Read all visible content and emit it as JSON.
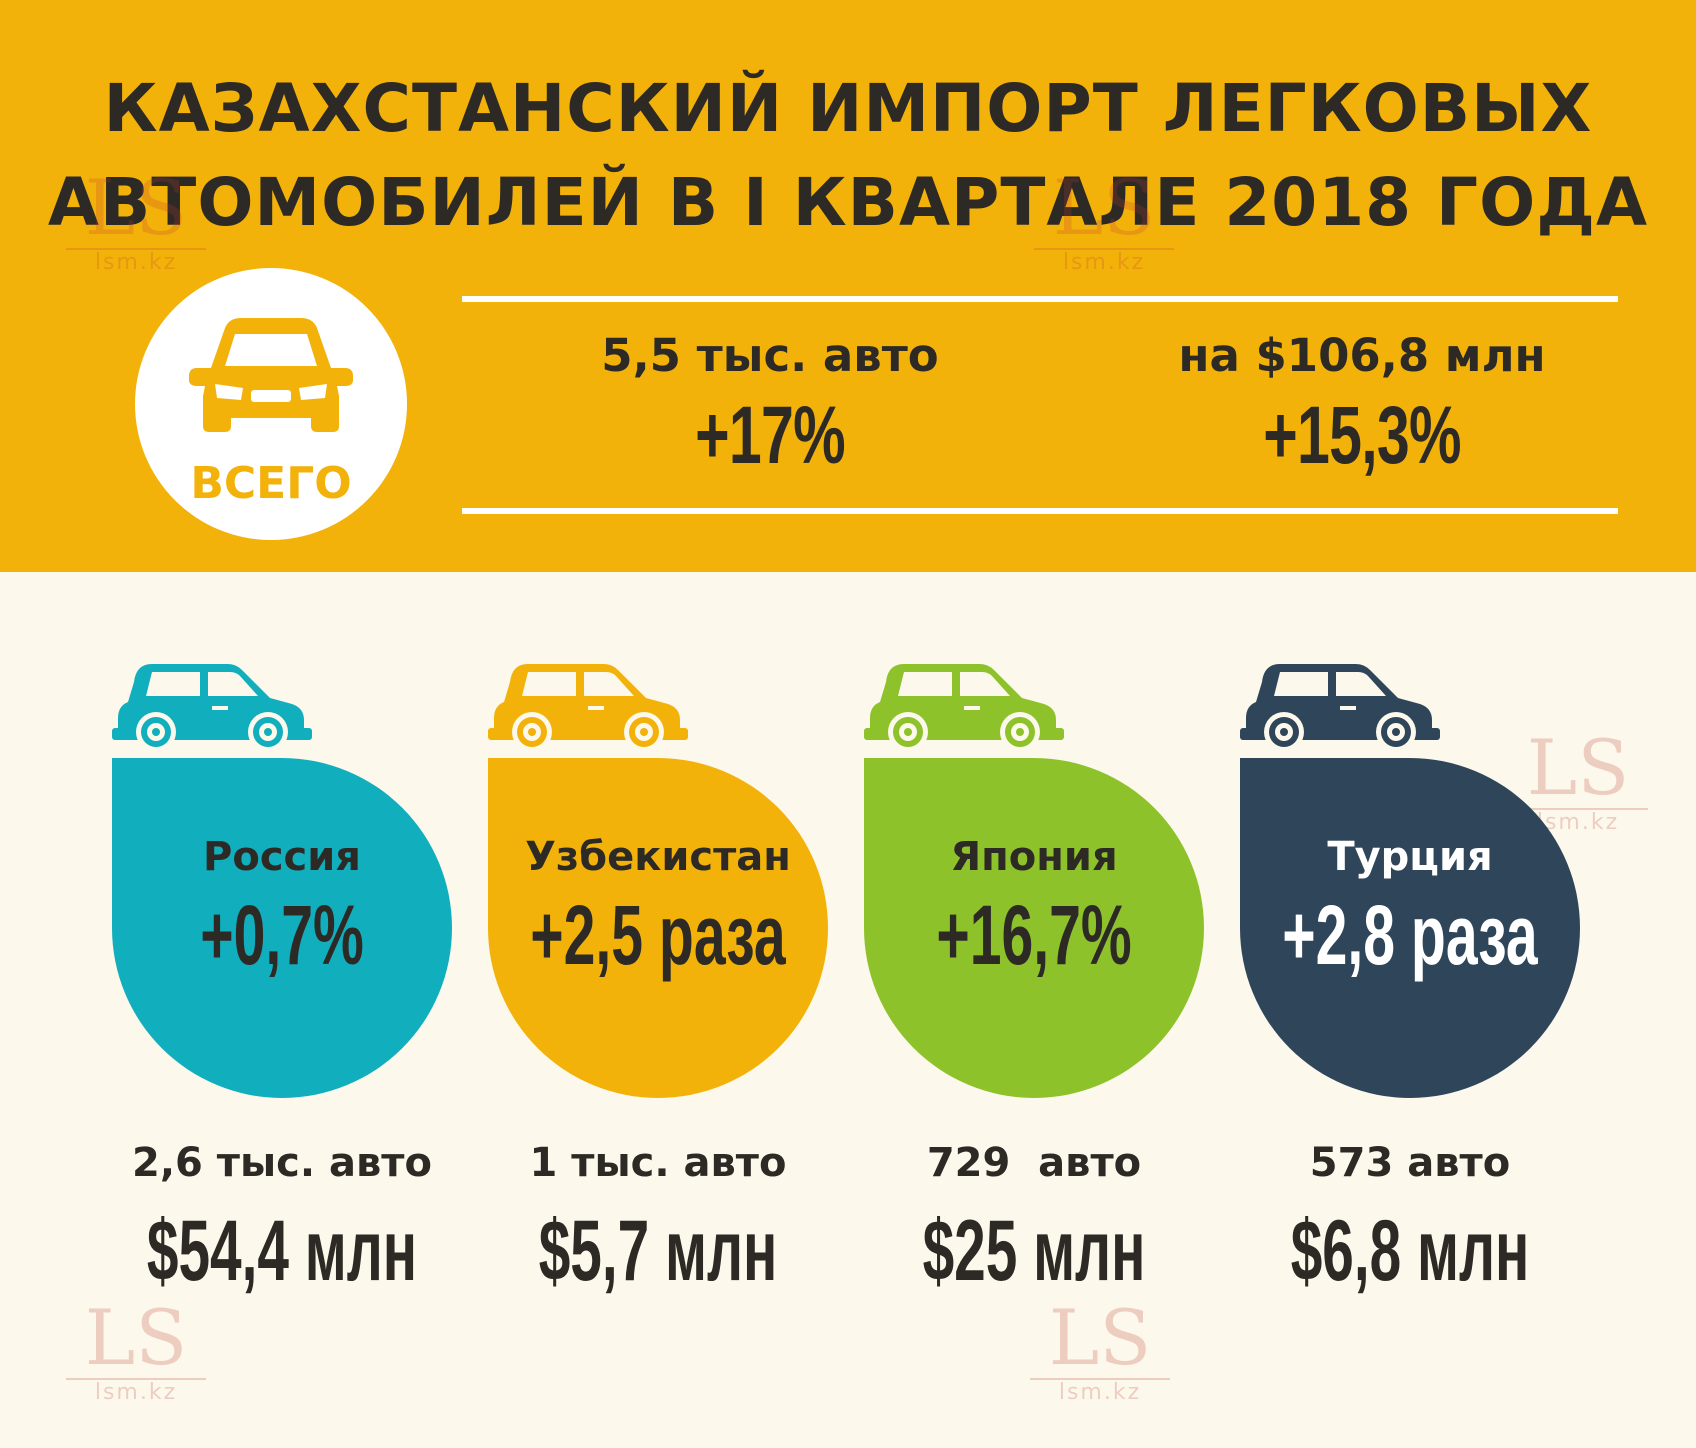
{
  "title": {
    "line1": "КАЗАХСТАНСКИЙ ИМПОРТ ЛЕГКОВЫХ",
    "line2": "АВТОМОБИЛЕЙ В I КВАРТАЛЕ 2018 ГОДА"
  },
  "total": {
    "label": "ВСЕГО",
    "icon": "car-front-icon",
    "count": "5,5 тыс. авто",
    "count_growth": "+17%",
    "value": "на $106,8 млн",
    "value_growth": "+15,3%"
  },
  "countries": [
    {
      "name": "Россия",
      "growth": "+0,7%",
      "count": "2,6 тыс. авто",
      "value": "$54,4 млн",
      "color": "#11aebd",
      "text_color": "#2d2a26"
    },
    {
      "name": "Узбекистан",
      "growth": "+2,5 раза",
      "count": "1 тыс. авто",
      "value": "$5,7 млн",
      "color": "#f3b20a",
      "text_color": "#2d2a26"
    },
    {
      "name": "Япония",
      "growth": "+16,7%",
      "count": "729  авто",
      "value": "$25 млн",
      "color": "#8dc22b",
      "text_color": "#2d2a26"
    },
    {
      "name": "Турция",
      "growth": "+2,8 раза",
      "count": "573 авто",
      "value": "$6,8 млн",
      "color": "#2f455a",
      "text_color": "#ffffff"
    }
  ],
  "watermark": {
    "logo": "LS",
    "site": "lsm.kz"
  },
  "colors": {
    "header": "#f3b20a",
    "background": "#fcf8ec",
    "dark": "#2d2a26"
  }
}
